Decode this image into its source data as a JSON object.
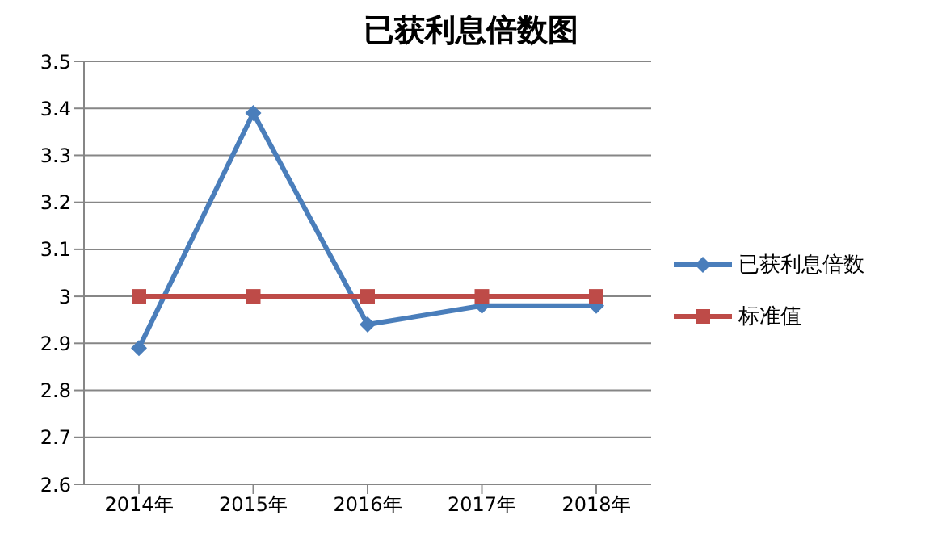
{
  "chart_data": {
    "type": "line",
    "title": "已获利息倍数图",
    "categories": [
      "2014年",
      "2015年",
      "2016年",
      "2017年",
      "2018年"
    ],
    "series": [
      {
        "name": "已获利息倍数",
        "color": "#4a7ebb",
        "values": [
          2.89,
          3.39,
          2.94,
          2.98,
          2.98
        ],
        "marker": "diamond"
      },
      {
        "name": "标准值",
        "color": "#be4b48",
        "values": [
          3,
          3,
          3,
          3,
          3
        ],
        "marker": "square"
      }
    ],
    "ylim": [
      2.6,
      3.5
    ],
    "yticks": [
      2.6,
      2.7,
      2.8,
      2.9,
      3,
      3.1,
      3.2,
      3.3,
      3.4,
      3.5
    ],
    "grid": "y",
    "legend": "right",
    "line_style": "solid"
  }
}
